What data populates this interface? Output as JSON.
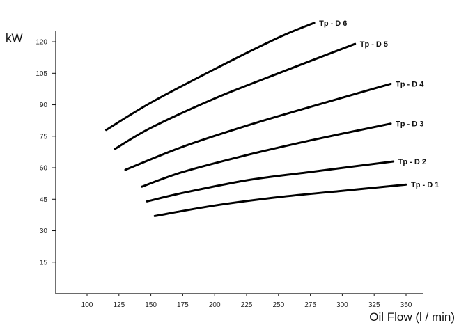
{
  "chart_data": {
    "type": "line",
    "ylabel": "kW",
    "xlabel": "Oil Flow (l / min)",
    "xlim": [
      75,
      360
    ],
    "ylim": [
      0,
      124
    ],
    "x_ticks": [
      100,
      125,
      150,
      175,
      200,
      225,
      250,
      275,
      300,
      325,
      350
    ],
    "y_ticks": [
      15,
      30,
      45,
      60,
      75,
      90,
      105,
      120
    ],
    "x_tick_labels": [
      "100",
      "125",
      "150",
      "175",
      "200",
      "225",
      "250",
      "275",
      "300",
      "325",
      "350"
    ],
    "y_tick_labels": [
      "15",
      "30",
      "45",
      "60",
      "75",
      "90",
      "105",
      "120"
    ],
    "grid": false,
    "series": [
      {
        "name": "Tp - D 6",
        "x": [
          115,
          150,
          200,
          250,
          278
        ],
        "y": [
          78,
          91,
          107,
          122,
          129
        ]
      },
      {
        "name": "Tp - D 5",
        "x": [
          122,
          150,
          200,
          250,
          310
        ],
        "y": [
          69,
          79,
          93,
          105,
          119
        ]
      },
      {
        "name": "Tp - D 4",
        "x": [
          130,
          175,
          225,
          275,
          338
        ],
        "y": [
          59,
          70,
          80,
          89,
          100
        ]
      },
      {
        "name": "Tp - D 3",
        "x": [
          143,
          175,
          225,
          275,
          338
        ],
        "y": [
          51,
          58,
          66,
          73,
          81
        ]
      },
      {
        "name": "Tp - D 2",
        "x": [
          147,
          175,
          225,
          275,
          340
        ],
        "y": [
          44,
          48,
          54,
          58,
          63
        ]
      },
      {
        "name": "Tp - D 1",
        "x": [
          153,
          200,
          250,
          300,
          350
        ],
        "y": [
          37,
          42,
          46,
          49,
          52
        ]
      }
    ]
  }
}
